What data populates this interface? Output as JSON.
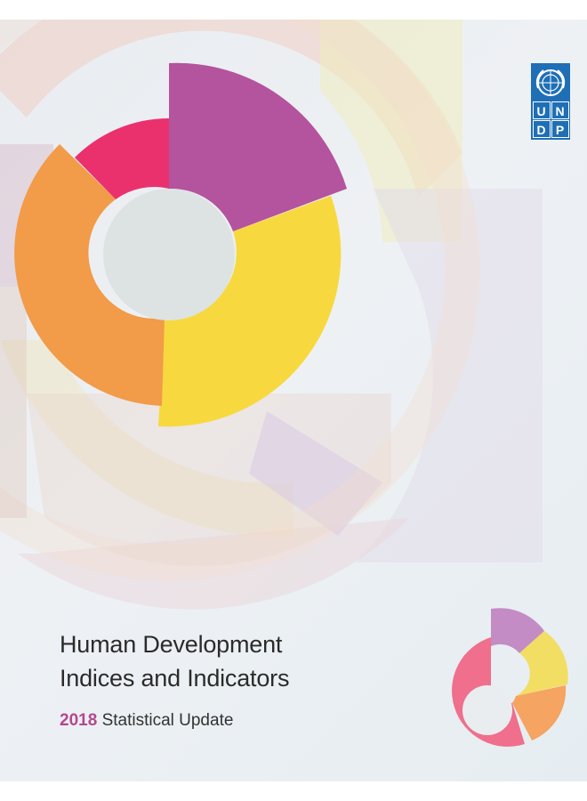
{
  "cover": {
    "title_line1": "Human Development",
    "title_line2": "Indices and Indicators",
    "subtitle_year": "2018",
    "subtitle_text": "Statistical Update",
    "background_color": "#eceff2"
  },
  "logo": {
    "letters": [
      "U",
      "N",
      "D",
      "P"
    ],
    "emblem_icon": "un-emblem-icon",
    "color": "#1f6fb6"
  },
  "palette": {
    "purple": "#b4539e",
    "yellow": "#f7d93f",
    "orange": "#f29b48",
    "pink": "#ea316e",
    "small_pink": "#ef6f8c"
  }
}
